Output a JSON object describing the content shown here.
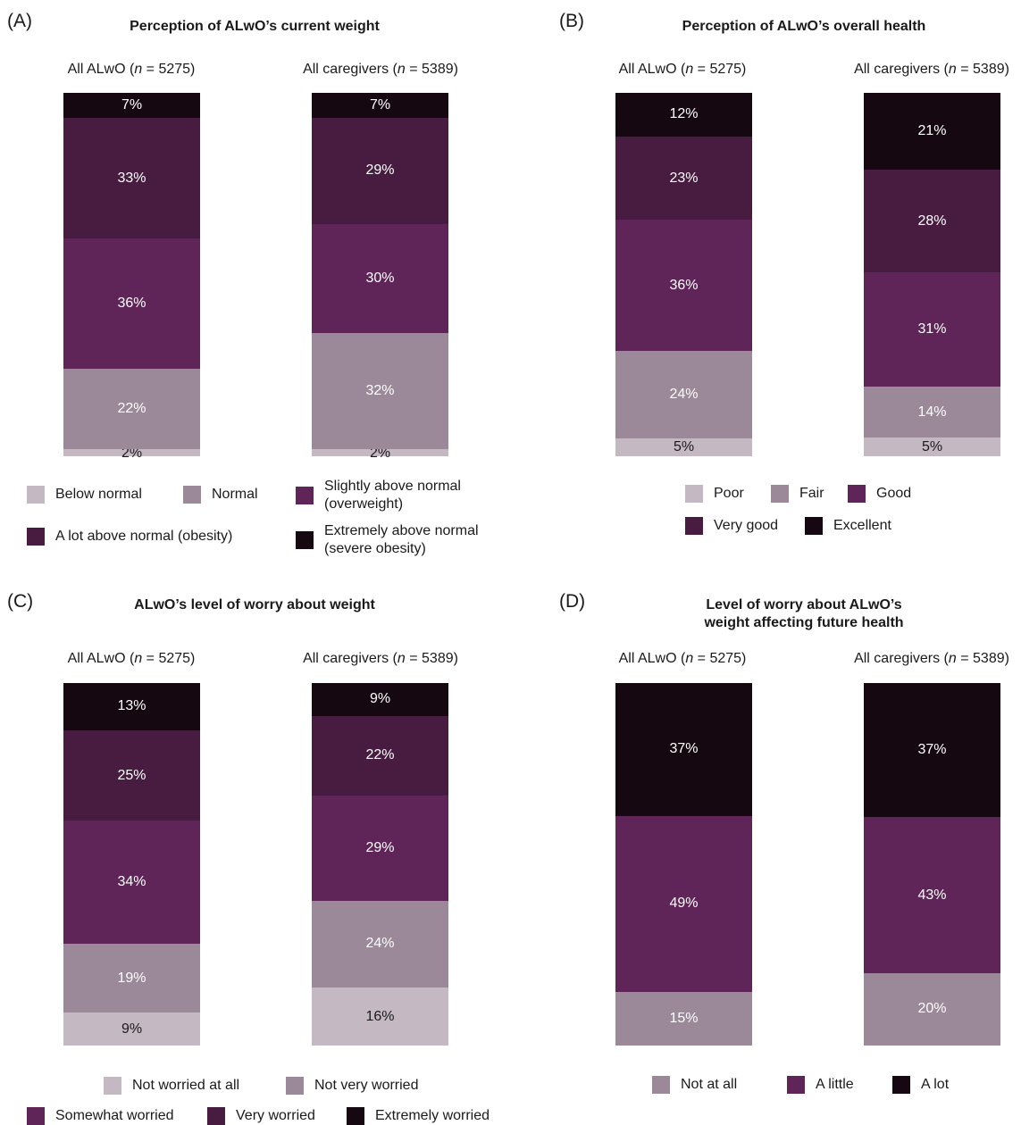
{
  "colors": {
    "c0": "#c4b8c2",
    "c1": "#9b8898",
    "c2": "#5f2458",
    "c3": "#471c40",
    "c4": "#160811"
  },
  "panels": [
    {
      "letter": "(A)",
      "title": [
        "Perception of ALwO’s current weight"
      ],
      "legend": [
        {
          "label": [
            "Below normal"
          ],
          "color": "c0"
        },
        {
          "label": [
            "Normal"
          ],
          "color": "c1"
        },
        {
          "label": [
            "Slightly above normal",
            "(overweight)"
          ],
          "color": "c2"
        },
        {
          "label": [
            "A lot above normal (obesity)"
          ],
          "color": "c3"
        },
        {
          "label": [
            "Extremely above normal",
            "(severe obesity)"
          ],
          "color": "c4"
        }
      ]
    },
    {
      "letter": "(B)",
      "title": [
        "Perception of ALwO’s overall health"
      ],
      "legend": [
        {
          "label": [
            "Poor"
          ],
          "color": "c0"
        },
        {
          "label": [
            "Fair"
          ],
          "color": "c1"
        },
        {
          "label": [
            "Good"
          ],
          "color": "c2"
        },
        {
          "label": [
            "Very good"
          ],
          "color": "c3"
        },
        {
          "label": [
            "Excellent"
          ],
          "color": "c4"
        }
      ]
    },
    {
      "letter": "(C)",
      "title": [
        "ALwO’s level of worry about weight"
      ],
      "legend": [
        {
          "label": [
            "Not worried at all"
          ],
          "color": "c0"
        },
        {
          "label": [
            "Not very worried"
          ],
          "color": "c1"
        },
        {
          "label": [
            "Somewhat worried"
          ],
          "color": "c2"
        },
        {
          "label": [
            "Very worried"
          ],
          "color": "c3"
        },
        {
          "label": [
            "Extremely worried"
          ],
          "color": "c4"
        }
      ]
    },
    {
      "letter": "(D)",
      "title": [
        "Level of worry about ALwO’s",
        "weight affecting future health"
      ],
      "legend": [
        {
          "label": [
            "Not at all"
          ],
          "color": "c1"
        },
        {
          "label": [
            "A little"
          ],
          "color": "c2"
        },
        {
          "label": [
            "A lot"
          ],
          "color": "c4"
        }
      ]
    }
  ],
  "chart_data": [
    {
      "type": "bar",
      "stacked": true,
      "title": "Perception of ALwO’s current weight",
      "categories": [
        "All ALwO (n = 5275)",
        "All caregivers (n = 5389)"
      ],
      "series": [
        {
          "name": "Below normal",
          "color": "c0",
          "values": [
            2,
            2
          ]
        },
        {
          "name": "Normal",
          "color": "c1",
          "values": [
            22,
            32
          ]
        },
        {
          "name": "Slightly above normal (overweight)",
          "color": "c2",
          "values": [
            36,
            30
          ]
        },
        {
          "name": "A lot above normal (obesity)",
          "color": "c3",
          "values": [
            33,
            29
          ]
        },
        {
          "name": "Extremely above normal (severe obesity)",
          "color": "c4",
          "values": [
            7,
            7
          ]
        }
      ],
      "value_labels": [
        [
          "2%",
          "22%",
          "36%",
          "33%",
          "7%"
        ],
        [
          "2%",
          "32%",
          "30%",
          "29%",
          "7%"
        ]
      ],
      "ylim": [
        0,
        100
      ]
    },
    {
      "type": "bar",
      "stacked": true,
      "title": "Perception of ALwO’s overall health",
      "categories": [
        "All ALwO (n = 5275)",
        "All caregivers (n = 5389)"
      ],
      "series": [
        {
          "name": "Poor",
          "color": "c0",
          "values": [
            5,
            5
          ]
        },
        {
          "name": "Fair",
          "color": "c1",
          "values": [
            24,
            14
          ]
        },
        {
          "name": "Good",
          "color": "c2",
          "values": [
            36,
            31
          ]
        },
        {
          "name": "Very good",
          "color": "c3",
          "values": [
            23,
            28
          ]
        },
        {
          "name": "Excellent",
          "color": "c4",
          "values": [
            12,
            21
          ]
        }
      ],
      "value_labels": [
        [
          "5%",
          "24%",
          "36%",
          "23%",
          "12%"
        ],
        [
          "5%",
          "14%",
          "31%",
          "28%",
          "21%"
        ]
      ],
      "ylim": [
        0,
        100
      ]
    },
    {
      "type": "bar",
      "stacked": true,
      "title": "ALwO’s level of worry about weight",
      "categories": [
        "All ALwO (n = 5275)",
        "All caregivers (n = 5389)"
      ],
      "series": [
        {
          "name": "Not worried at all",
          "color": "c0",
          "values": [
            9,
            16
          ]
        },
        {
          "name": "Not very worried",
          "color": "c1",
          "values": [
            19,
            24
          ]
        },
        {
          "name": "Somewhat worried",
          "color": "c2",
          "values": [
            34,
            29
          ]
        },
        {
          "name": "Very worried",
          "color": "c3",
          "values": [
            25,
            22
          ]
        },
        {
          "name": "Extremely worried",
          "color": "c4",
          "values": [
            13,
            9
          ]
        }
      ],
      "value_labels": [
        [
          "9%",
          "19%",
          "34%",
          "25%",
          "13%"
        ],
        [
          "16%",
          "24%",
          "29%",
          "22%",
          "9%"
        ]
      ],
      "ylim": [
        0,
        100
      ]
    },
    {
      "type": "bar",
      "stacked": true,
      "title": "Level of worry about ALwO’s weight affecting future health",
      "categories": [
        "All ALwO (n = 5275)",
        "All caregivers (n = 5389)"
      ],
      "series": [
        {
          "name": "Not at all",
          "color": "c1",
          "values": [
            15,
            20
          ]
        },
        {
          "name": "A little",
          "color": "c2",
          "values": [
            49,
            43
          ]
        },
        {
          "name": "A lot",
          "color": "c4",
          "values": [
            37,
            37
          ]
        }
      ],
      "value_labels": [
        [
          "15%",
          "49%",
          "37%"
        ],
        [
          "20%",
          "43%",
          "37%"
        ]
      ],
      "ylim": [
        0,
        100
      ]
    }
  ],
  "bar_labels": [
    {
      "prefix": "All ALwO (",
      "n": "n",
      "suffix": " = 5275)"
    },
    {
      "prefix": "All caregivers (",
      "n": "n",
      "suffix": " = 5389)"
    }
  ]
}
